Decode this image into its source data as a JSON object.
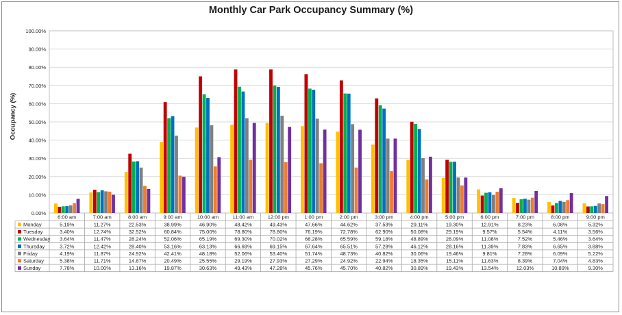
{
  "chart_data": {
    "type": "bar",
    "title": "Monthly Car Park Occupancy Summary (%)",
    "ylabel": "Occupancy (%)",
    "xlabel": "",
    "ylim": [
      0,
      100
    ],
    "y_ticks": [
      "0.00%",
      "10.00%",
      "20.00%",
      "30.00%",
      "40.00%",
      "50.00%",
      "60.00%",
      "70.00%",
      "80.00%",
      "90.00%",
      "100.00%"
    ],
    "grid": true,
    "legend": "data-table",
    "categories": [
      "6:00 am",
      "7:00 am",
      "8:00 am",
      "9:00 am",
      "10:00 am",
      "11:00 am",
      "12:00 pm",
      "1:00 pm",
      "2:00 pm",
      "3:00 pm",
      "4:00 pm",
      "5:00 pm",
      "6:00 pm",
      "7:00 pm",
      "8:00 pm",
      "9:00 pm"
    ],
    "series": [
      {
        "name": "Monday",
        "color": "#FFC000",
        "values": [
          5.19,
          11.27,
          22.53,
          38.99,
          46.9,
          48.42,
          49.43,
          47.66,
          44.62,
          37.53,
          29.11,
          19.3,
          12.91,
          8.23,
          6.08,
          5.32
        ],
        "labels": [
          "5.19%",
          "11.27%",
          "22.53%",
          "38.99%",
          "46.90%",
          "48.42%",
          "49.43%",
          "47.66%",
          "44.62%",
          "37.53%",
          "29.11%",
          "19.30%",
          "12.91%",
          "8.23%",
          "6.08%",
          "5.32%"
        ]
      },
      {
        "name": "Tuesday",
        "color": "#C00000",
        "values": [
          3.4,
          12.74,
          32.52,
          60.84,
          75.0,
          78.8,
          78.8,
          76.19,
          72.78,
          62.9,
          50.08,
          29.19,
          9.57,
          5.54,
          4.11,
          3.56
        ],
        "labels": [
          "3.40%",
          "12.74%",
          "32.52%",
          "60.84%",
          "75.00%",
          "78.80%",
          "78.80%",
          "76.19%",
          "72.78%",
          "62.90%",
          "50.08%",
          "29.19%",
          "9.57%",
          "5.54%",
          "4.11%",
          "3.56%"
        ]
      },
      {
        "name": "Wednesday",
        "color": "#00B050",
        "values": [
          3.64,
          11.47,
          28.24,
          52.06,
          65.19,
          69.3,
          70.02,
          68.28,
          65.59,
          59.18,
          48.89,
          28.09,
          11.08,
          7.52,
          5.46,
          3.64
        ],
        "labels": [
          "3.64%",
          "11.47%",
          "28.24%",
          "52.06%",
          "65.19%",
          "69.30%",
          "70.02%",
          "68.28%",
          "65.59%",
          "59.18%",
          "48.89%",
          "28.09%",
          "11.08%",
          "7.52%",
          "5.46%",
          "3.64%"
        ]
      },
      {
        "name": "Thursday",
        "color": "#0070C0",
        "values": [
          3.72,
          12.42,
          28.4,
          53.16,
          63.13,
          66.69,
          69.15,
          67.64,
          65.51,
          57.28,
          46.12,
          28.16,
          11.39,
          7.83,
          6.65,
          3.88
        ],
        "labels": [
          "3.72%",
          "12.42%",
          "28.40%",
          "53.16%",
          "63.13%",
          "66.69%",
          "69.15%",
          "67.64%",
          "65.51%",
          "57.28%",
          "46.12%",
          "28.16%",
          "11.39%",
          "7.83%",
          "6.65%",
          "3.88%"
        ]
      },
      {
        "name": "Friday",
        "color": "#808080",
        "values": [
          4.19,
          11.87,
          24.92,
          42.41,
          48.18,
          52.06,
          53.4,
          51.74,
          48.73,
          40.82,
          30.06,
          19.46,
          9.81,
          7.28,
          6.09,
          5.22
        ],
        "labels": [
          "4.19%",
          "11.87%",
          "24.92%",
          "42.41%",
          "48.18%",
          "52.06%",
          "53.40%",
          "51.74%",
          "48.73%",
          "40.82%",
          "30.06%",
          "19.46%",
          "9.81%",
          "7.28%",
          "6.09%",
          "5.22%"
        ]
      },
      {
        "name": "Saturday",
        "color": "#ED7D31",
        "values": [
          5.38,
          11.71,
          14.87,
          20.49,
          25.55,
          29.19,
          27.93,
          27.29,
          24.92,
          22.94,
          18.35,
          15.11,
          11.63,
          8.39,
          7.04,
          4.83
        ],
        "labels": [
          "5.38%",
          "11.71%",
          "14.87%",
          "20.49%",
          "25.55%",
          "29.19%",
          "27.93%",
          "27.29%",
          "24.92%",
          "22.94%",
          "18.35%",
          "15.11%",
          "11.63%",
          "8.39%",
          "7.04%",
          "4.83%"
        ]
      },
      {
        "name": "Sunday",
        "color": "#7030A0",
        "values": [
          7.78,
          10.0,
          13.16,
          19.87,
          30.63,
          49.43,
          47.28,
          45.76,
          45.7,
          40.82,
          30.89,
          19.43,
          13.54,
          12.03,
          10.89,
          9.3
        ],
        "labels": [
          "7.78%",
          "10.00%",
          "13.16%",
          "19.87%",
          "30.63%",
          "49.43%",
          "47.28%",
          "45.76%",
          "45.70%",
          "40.82%",
          "30.89%",
          "19.43%",
          "13.54%",
          "12.03%",
          "10.89%",
          "9.30%"
        ]
      }
    ]
  }
}
